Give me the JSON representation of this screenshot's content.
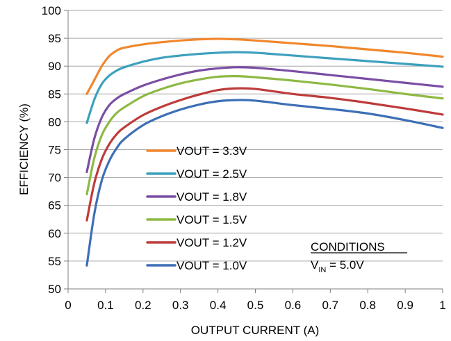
{
  "chart_data": {
    "type": "line",
    "xlabel": "OUTPUT CURRENT (A)",
    "ylabel": "EFFICIENCY (%)",
    "xlim": [
      0,
      1
    ],
    "ylim": [
      50,
      100
    ],
    "xticks": [
      0,
      0.1,
      0.2,
      0.3,
      0.4,
      0.5,
      0.6,
      0.7,
      0.8,
      0.9,
      1
    ],
    "xtick_labels": [
      "0",
      "0.1",
      "0.2",
      "0.3",
      "0.4",
      "0.5",
      "0.6",
      "0.7",
      "0.8",
      "0.9",
      "1"
    ],
    "yticks": [
      50,
      55,
      60,
      65,
      70,
      75,
      80,
      85,
      90,
      95,
      100
    ],
    "ytick_labels": [
      "50",
      "55",
      "60",
      "65",
      "70",
      "75",
      "80",
      "85",
      "90",
      "95",
      "100"
    ],
    "grid": {
      "horizontal": true,
      "vertical": false
    },
    "legend_position": "center-left",
    "series": [
      {
        "name": "VOUT = 3.3V",
        "color": "#f0872d",
        "x": [
          0.05,
          0.07,
          0.09,
          0.11,
          0.13,
          0.15,
          0.2,
          0.25,
          0.3,
          0.35,
          0.4,
          0.45,
          0.5,
          0.6,
          0.7,
          0.8,
          0.9,
          1.0
        ],
        "y": [
          85.0,
          87.5,
          90.0,
          91.8,
          92.8,
          93.3,
          93.9,
          94.3,
          94.6,
          94.8,
          94.9,
          94.8,
          94.6,
          94.1,
          93.6,
          93.0,
          92.4,
          91.7
        ]
      },
      {
        "name": "VOUT = 2.5V",
        "color": "#3ca0bd",
        "x": [
          0.05,
          0.07,
          0.09,
          0.11,
          0.13,
          0.15,
          0.2,
          0.25,
          0.3,
          0.35,
          0.4,
          0.45,
          0.5,
          0.6,
          0.7,
          0.8,
          0.9,
          1.0
        ],
        "y": [
          79.8,
          84.0,
          86.8,
          88.3,
          89.2,
          89.8,
          90.8,
          91.5,
          91.9,
          92.2,
          92.4,
          92.5,
          92.4,
          91.9,
          91.4,
          90.9,
          90.4,
          89.9
        ]
      },
      {
        "name": "VOUT = 1.8V",
        "color": "#7a4ea3",
        "x": [
          0.05,
          0.07,
          0.09,
          0.11,
          0.13,
          0.15,
          0.2,
          0.25,
          0.3,
          0.35,
          0.4,
          0.45,
          0.5,
          0.6,
          0.7,
          0.8,
          0.9,
          1.0
        ],
        "y": [
          71.0,
          77.0,
          80.8,
          83.0,
          84.2,
          85.0,
          86.5,
          87.6,
          88.5,
          89.2,
          89.6,
          89.8,
          89.7,
          89.1,
          88.4,
          87.7,
          87.0,
          86.3
        ]
      },
      {
        "name": "VOUT = 1.5V",
        "color": "#8db944",
        "x": [
          0.05,
          0.07,
          0.09,
          0.11,
          0.13,
          0.15,
          0.2,
          0.25,
          0.3,
          0.35,
          0.4,
          0.45,
          0.5,
          0.6,
          0.7,
          0.8,
          0.9,
          1.0
        ],
        "y": [
          67.0,
          73.5,
          77.6,
          80.0,
          81.6,
          82.6,
          84.6,
          85.9,
          86.9,
          87.6,
          88.1,
          88.2,
          88.0,
          87.4,
          86.7,
          85.9,
          85.0,
          84.2
        ]
      },
      {
        "name": "VOUT = 1.2V",
        "color": "#be3b3b",
        "x": [
          0.05,
          0.07,
          0.09,
          0.11,
          0.13,
          0.15,
          0.2,
          0.25,
          0.3,
          0.35,
          0.4,
          0.45,
          0.5,
          0.6,
          0.7,
          0.8,
          0.9,
          1.0
        ],
        "y": [
          62.3,
          69.0,
          73.3,
          76.0,
          77.8,
          79.0,
          81.2,
          82.7,
          83.9,
          84.9,
          85.7,
          86.0,
          85.9,
          85.0,
          84.3,
          83.4,
          82.4,
          81.3
        ]
      },
      {
        "name": "VOUT = 1.0V",
        "color": "#3d6fb6",
        "x": [
          0.05,
          0.07,
          0.09,
          0.11,
          0.13,
          0.15,
          0.2,
          0.25,
          0.3,
          0.35,
          0.4,
          0.45,
          0.5,
          0.6,
          0.7,
          0.8,
          0.9,
          1.0
        ],
        "y": [
          54.2,
          63.5,
          69.5,
          73.0,
          75.3,
          76.9,
          79.4,
          81.0,
          82.2,
          83.1,
          83.7,
          83.9,
          83.8,
          83.0,
          82.3,
          81.5,
          80.3,
          78.9
        ]
      }
    ],
    "annotation": {
      "title": "CONDITIONS",
      "line_main": "V",
      "line_sub": "IN",
      "line_rest": " = 5.0V"
    }
  }
}
